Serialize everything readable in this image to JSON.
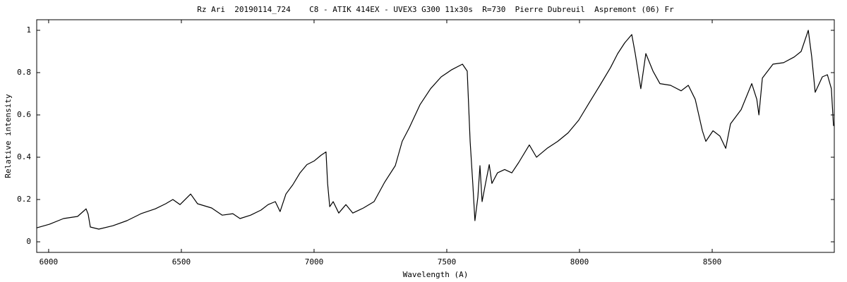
{
  "chart_data": {
    "type": "line",
    "title": "Rz Ari  20190114_724    C8 - ATIK 414EX - UVEX3 G300 11x30s  R=730  Pierre Dubreuil  Aspremont (06) Fr",
    "x_label": "Wavelength (A)",
    "y_label": "Relative intensity",
    "color": "#000000",
    "x": [
      5955,
      6003,
      6056,
      6109,
      6136,
      6141,
      6149,
      6157,
      6189,
      6242,
      6295,
      6348,
      6402,
      6441,
      6468,
      6495,
      6535,
      6561,
      6614,
      6654,
      6694,
      6721,
      6761,
      6800,
      6827,
      6854,
      6872,
      6894,
      6920,
      6947,
      6973,
      7000,
      7027,
      7045,
      7051,
      7059,
      7072,
      7093,
      7120,
      7146,
      7186,
      7226,
      7266,
      7306,
      7332,
      7359,
      7399,
      7439,
      7479,
      7519,
      7559,
      7577,
      7588,
      7598,
      7606,
      7617,
      7625,
      7633,
      7646,
      7660,
      7670,
      7691,
      7718,
      7745,
      7771,
      7811,
      7838,
      7878,
      7918,
      7957,
      7997,
      8037,
      8077,
      8117,
      8144,
      8170,
      8197,
      8210,
      8231,
      8250,
      8277,
      8303,
      8343,
      8383,
      8410,
      8436,
      8463,
      8476,
      8503,
      8529,
      8551,
      8569,
      8609,
      8649,
      8668,
      8676,
      8689,
      8729,
      8769,
      8809,
      8835,
      8862,
      8875,
      8888,
      8915,
      8934,
      8949,
      8957
    ],
    "values": [
      0.066,
      0.083,
      0.11,
      0.12,
      0.15,
      0.156,
      0.13,
      0.07,
      0.06,
      0.076,
      0.1,
      0.133,
      0.156,
      0.18,
      0.2,
      0.176,
      0.226,
      0.18,
      0.16,
      0.126,
      0.133,
      0.11,
      0.126,
      0.15,
      0.176,
      0.19,
      0.143,
      0.226,
      0.27,
      0.326,
      0.365,
      0.382,
      0.41,
      0.425,
      0.276,
      0.166,
      0.19,
      0.136,
      0.176,
      0.136,
      0.16,
      0.19,
      0.282,
      0.36,
      0.475,
      0.54,
      0.648,
      0.724,
      0.78,
      0.814,
      0.84,
      0.807,
      0.475,
      0.276,
      0.1,
      0.21,
      0.36,
      0.19,
      0.276,
      0.365,
      0.276,
      0.326,
      0.342,
      0.326,
      0.375,
      0.458,
      0.4,
      0.442,
      0.475,
      0.515,
      0.575,
      0.658,
      0.74,
      0.824,
      0.89,
      0.94,
      0.98,
      0.89,
      0.724,
      0.89,
      0.807,
      0.748,
      0.74,
      0.714,
      0.74,
      0.674,
      0.525,
      0.475,
      0.525,
      0.5,
      0.442,
      0.558,
      0.625,
      0.748,
      0.674,
      0.6,
      0.774,
      0.84,
      0.847,
      0.874,
      0.9,
      1.0,
      0.874,
      0.707,
      0.78,
      0.79,
      0.724,
      0.548
    ],
    "xlim": [
      5955,
      8960
    ],
    "ylim": [
      -0.05,
      1.05
    ],
    "xticks": [
      6000,
      6500,
      7000,
      7500,
      8000,
      8500
    ],
    "yticks": [
      0,
      0.2,
      0.4,
      0.6,
      0.8,
      1
    ],
    "grid": false
  }
}
